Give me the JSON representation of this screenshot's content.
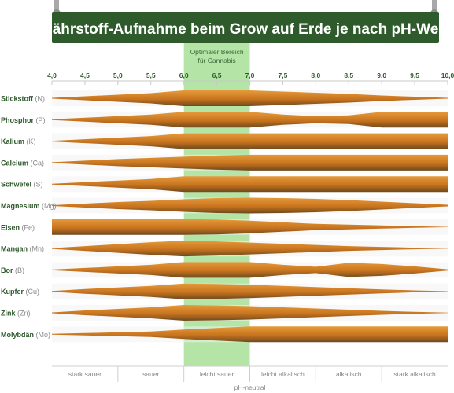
{
  "title": "Nährstoff-Aufnahme beim Grow auf Erde je nach pH-Wert",
  "colors": {
    "board": "#2f5a2c",
    "board_text": "#ffffff",
    "hanger": "#a9a9a9",
    "optimal_band": "#9bdc8a",
    "row_bg": "#f2f2f2",
    "band_light": "#e08a28",
    "band_dark": "#7a4a1d",
    "label": "#2f5a2c",
    "label_suffix": "#8a8a8a",
    "axis_text": "#2f5a2c",
    "zone_text": "#8a8a8a"
  },
  "chart_data": {
    "type": "area",
    "title": "Nährstoff-Aufnahme beim Grow auf Erde je nach pH-Wert",
    "xlim": [
      4.0,
      10.0
    ],
    "x_ticks": [
      "4,0",
      "4,5",
      "5,0",
      "5,5",
      "6,0",
      "6,5",
      "7,0",
      "7,5",
      "8,0",
      "8,5",
      "9,0",
      "9,5",
      "10,0"
    ],
    "optimal_range": {
      "x": [
        6.0,
        7.0
      ],
      "label_line1": "Optimaler Bereich",
      "label_line2": "für Cannabis"
    },
    "zones": [
      {
        "label": "stark sauer",
        "x": [
          4.0,
          5.0
        ]
      },
      {
        "label": "sauer",
        "x": [
          5.0,
          6.0
        ]
      },
      {
        "label": "leicht sauer",
        "x": [
          6.0,
          7.0
        ]
      },
      {
        "label": "leicht alkalisch",
        "x": [
          7.0,
          8.0
        ]
      },
      {
        "label": "alkalisch",
        "x": [
          8.0,
          9.0
        ]
      },
      {
        "label": "stark alkalisch",
        "x": [
          9.0,
          10.0
        ]
      }
    ],
    "neutral_label": "pH-neutral",
    "x_levels": [
      4.0,
      4.5,
      5.0,
      5.5,
      6.0,
      6.5,
      7.0,
      7.5,
      8.0,
      8.5,
      9.0,
      9.5,
      10.0
    ],
    "series": [
      {
        "name": "Stickstoff",
        "symbol": "(N)",
        "uptake": [
          0.05,
          0.25,
          0.45,
          0.65,
          1.0,
          1.0,
          1.0,
          0.85,
          0.7,
          0.55,
          0.35,
          0.2,
          0.05
        ]
      },
      {
        "name": "Phosphor",
        "symbol": "(P)",
        "uptake": [
          0.05,
          0.25,
          0.45,
          0.65,
          1.0,
          1.0,
          1.0,
          0.65,
          0.45,
          0.55,
          1.0,
          1.0,
          1.0
        ]
      },
      {
        "name": "Kalium",
        "symbol": "(K)",
        "uptake": [
          0.05,
          0.25,
          0.45,
          0.65,
          1.0,
          1.0,
          1.0,
          1.0,
          1.0,
          1.0,
          1.0,
          1.0,
          1.0
        ]
      },
      {
        "name": "Calcium",
        "symbol": "(Ca)",
        "uptake": [
          0.05,
          0.25,
          0.45,
          0.6,
          0.75,
          0.9,
          1.0,
          1.0,
          1.0,
          1.0,
          1.0,
          1.0,
          1.0
        ]
      },
      {
        "name": "Schwefel",
        "symbol": "(S)",
        "uptake": [
          0.05,
          0.25,
          0.45,
          0.65,
          1.0,
          1.0,
          1.0,
          1.0,
          1.0,
          1.0,
          1.0,
          1.0,
          1.0
        ]
      },
      {
        "name": "Magnesium",
        "symbol": "(Mg)",
        "uptake": [
          0.05,
          0.25,
          0.45,
          0.6,
          0.8,
          0.95,
          1.0,
          0.95,
          0.85,
          0.7,
          0.5,
          0.3,
          0.1
        ]
      },
      {
        "name": "Eisen",
        "symbol": "(Fe)",
        "uptake": [
          1.0,
          1.0,
          1.0,
          1.0,
          1.0,
          0.95,
          0.8,
          0.6,
          0.4,
          0.3,
          0.2,
          0.1,
          0.02
        ]
      },
      {
        "name": "Mangan",
        "symbol": "(Mn)",
        "uptake": [
          0.05,
          0.3,
          0.55,
          0.8,
          1.0,
          0.9,
          0.75,
          0.6,
          0.45,
          0.3,
          0.2,
          0.1,
          0.02
        ]
      },
      {
        "name": "Bor",
        "symbol": "(B)",
        "uptake": [
          0.05,
          0.25,
          0.45,
          0.65,
          1.0,
          1.0,
          1.0,
          0.65,
          0.4,
          0.9,
          0.75,
          0.45,
          0.08
        ]
      },
      {
        "name": "Kupfer",
        "symbol": "(Cu)",
        "uptake": [
          0.05,
          0.3,
          0.5,
          0.7,
          1.0,
          0.95,
          0.85,
          0.7,
          0.55,
          0.4,
          0.25,
          0.12,
          0.02
        ]
      },
      {
        "name": "Zink",
        "symbol": "(Zn)",
        "uptake": [
          0.05,
          0.3,
          0.5,
          0.7,
          1.0,
          0.95,
          0.85,
          0.7,
          0.55,
          0.4,
          0.25,
          0.12,
          0.02
        ]
      },
      {
        "name": "Molybdän",
        "symbol": "(Mo)",
        "uptake": [
          0.05,
          0.15,
          0.25,
          0.35,
          0.6,
          0.8,
          1.0,
          1.0,
          1.0,
          1.0,
          1.0,
          1.0,
          1.0
        ]
      }
    ]
  }
}
